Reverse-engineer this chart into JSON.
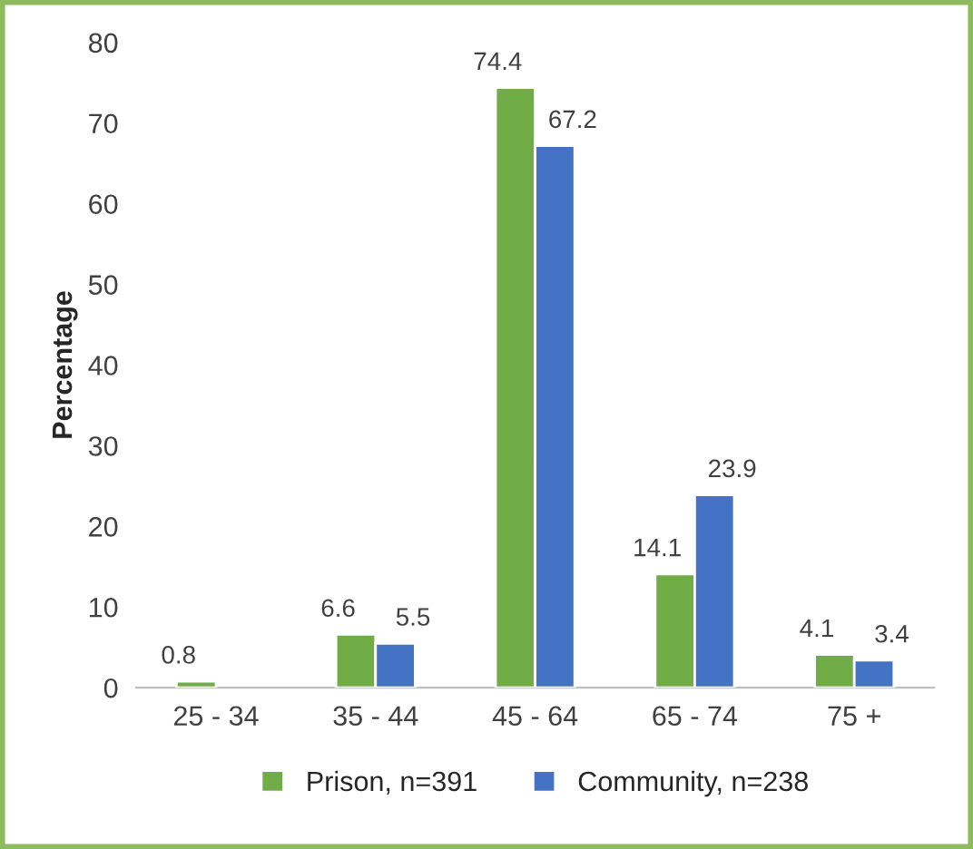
{
  "chart_data": {
    "type": "bar",
    "ylabel": "Percentage",
    "categories": [
      "25 - 34",
      "35 - 44",
      "45 - 64",
      "65 - 74",
      "75 +"
    ],
    "series": [
      {
        "name": "Prison, n=391",
        "color": "#70ad47",
        "values": [
          0.8,
          6.6,
          74.4,
          14.1,
          4.1
        ]
      },
      {
        "name": "Community, n=238",
        "color": "#4472c4",
        "values": [
          null,
          5.5,
          67.2,
          23.9,
          3.4
        ]
      }
    ],
    "ylim": [
      0,
      80
    ],
    "yticks": [
      0,
      10,
      20,
      30,
      40,
      50,
      60,
      70,
      80
    ],
    "data_labels": true,
    "legend": "bottom",
    "grid": false
  }
}
